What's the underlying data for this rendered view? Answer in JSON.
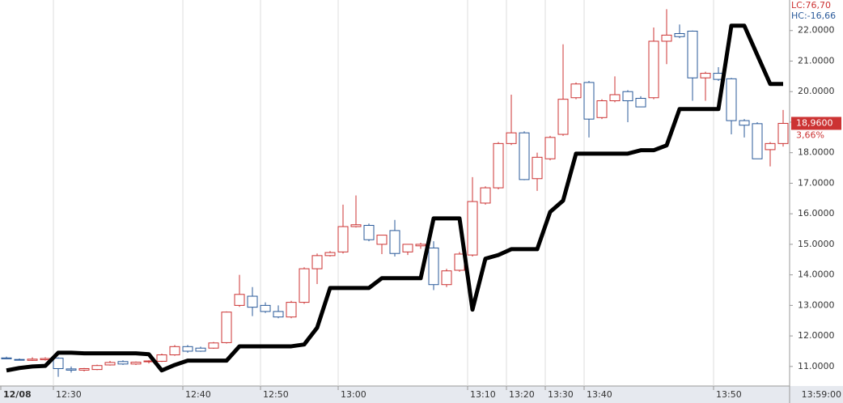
{
  "chart_data": {
    "type": "candlestick",
    "categories": [
      "12/08",
      null,
      null,
      null,
      "12:30",
      null,
      null,
      null,
      null,
      null,
      null,
      null,
      null,
      null,
      "12:40",
      null,
      null,
      null,
      null,
      null,
      "12:50",
      null,
      null,
      null,
      null,
      null,
      "13:00",
      null,
      null,
      null,
      null,
      null,
      null,
      null,
      null,
      null,
      "13:10",
      null,
      null,
      "13:20",
      null,
      null,
      "13:30",
      null,
      null,
      "13:40",
      null,
      null,
      null,
      null,
      null,
      null,
      null,
      null,
      null,
      "13:50",
      null,
      null,
      null,
      null,
      null
    ],
    "open": [
      11.28,
      11.23,
      11.2,
      11.22,
      11.27,
      10.92,
      10.88,
      10.9,
      11.05,
      11.16,
      11.08,
      11.16,
      11.17,
      11.38,
      11.65,
      11.6,
      11.6,
      11.78,
      13.0,
      13.3,
      13.0,
      12.8,
      12.62,
      13.1,
      14.2,
      14.63,
      14.75,
      15.58,
      15.62,
      15.0,
      15.45,
      14.75,
      14.95,
      14.88,
      13.68,
      14.15,
      14.65,
      16.35,
      16.85,
      18.3,
      18.65,
      17.15,
      17.8,
      18.6,
      19.8,
      20.3,
      19.15,
      19.7,
      20.0,
      19.78,
      19.8,
      21.65,
      21.9,
      21.98,
      20.45,
      20.6,
      20.42,
      19.05,
      18.95,
      18.1,
      18.3
    ],
    "high": [
      11.32,
      11.26,
      11.3,
      11.3,
      11.3,
      11.0,
      10.95,
      11.06,
      11.18,
      11.2,
      11.16,
      11.2,
      11.42,
      11.7,
      11.7,
      11.65,
      11.8,
      12.8,
      14.0,
      13.6,
      13.1,
      13.0,
      13.15,
      14.25,
      14.7,
      14.78,
      16.3,
      16.6,
      15.68,
      15.3,
      15.8,
      15.0,
      15.05,
      15.1,
      14.2,
      14.75,
      17.2,
      16.9,
      18.35,
      19.9,
      18.7,
      18.0,
      18.55,
      21.55,
      20.3,
      20.35,
      19.75,
      20.5,
      20.05,
      19.85,
      22.1,
      22.7,
      22.2,
      22.0,
      20.65,
      20.8,
      20.45,
      19.1,
      19.0,
      18.35,
      19.4
    ],
    "low": [
      11.24,
      11.2,
      11.18,
      11.19,
      10.66,
      10.8,
      10.84,
      10.88,
      11.03,
      11.05,
      11.05,
      11.1,
      11.15,
      11.35,
      11.45,
      11.48,
      11.58,
      11.75,
      12.95,
      12.65,
      12.75,
      12.58,
      12.58,
      13.05,
      13.7,
      14.6,
      14.7,
      15.55,
      15.1,
      14.68,
      14.6,
      14.65,
      14.85,
      13.5,
      13.6,
      14.1,
      14.6,
      16.3,
      16.8,
      18.25,
      17.1,
      16.75,
      17.75,
      18.55,
      19.75,
      18.5,
      19.1,
      19.65,
      19.0,
      19.5,
      19.75,
      20.9,
      21.75,
      19.7,
      19.7,
      20.35,
      18.6,
      18.5,
      17.8,
      17.55,
      18.2
    ],
    "close": [
      11.25,
      11.22,
      11.24,
      11.26,
      10.93,
      10.88,
      10.93,
      11.03,
      11.13,
      11.08,
      11.14,
      11.18,
      11.38,
      11.65,
      11.5,
      11.5,
      11.77,
      12.78,
      13.36,
      12.94,
      12.8,
      12.62,
      13.1,
      14.2,
      14.63,
      14.73,
      15.58,
      15.64,
      15.15,
      15.3,
      14.7,
      15.0,
      15.0,
      13.68,
      14.13,
      14.68,
      16.4,
      16.85,
      18.3,
      18.65,
      17.12,
      17.85,
      18.5,
      19.75,
      20.25,
      19.1,
      19.7,
      19.9,
      19.7,
      19.5,
      21.65,
      21.85,
      21.8,
      20.45,
      20.6,
      20.4,
      19.05,
      18.9,
      17.8,
      18.3,
      18.96
    ],
    "up_color": "#cc3333",
    "down_color": "#2a5a9a",
    "line": {
      "color": "#000000",
      "values": [
        10.87,
        10.95,
        11.0,
        11.02,
        11.45,
        11.45,
        11.43,
        11.43,
        11.43,
        11.43,
        11.43,
        11.4,
        10.87,
        11.05,
        11.19,
        11.19,
        11.19,
        11.19,
        11.66,
        11.66,
        11.66,
        11.66,
        11.66,
        11.72,
        12.27,
        13.57,
        13.57,
        13.57,
        13.57,
        13.89,
        13.89,
        13.89,
        13.89,
        15.85,
        15.85,
        15.85,
        12.86,
        14.53,
        14.65,
        14.84,
        14.84,
        14.84,
        16.06,
        16.43,
        17.97,
        17.97,
        17.97,
        17.97,
        17.97,
        18.08,
        18.08,
        18.24,
        19.43,
        19.43,
        19.43,
        19.43,
        22.16,
        22.16,
        21.2,
        20.25,
        20.25
      ]
    },
    "ylim": [
      10.36,
      23.0
    ],
    "yticks": [
      {
        "value": 11,
        "label": "11.0000"
      },
      {
        "value": 12,
        "label": "12.0000"
      },
      {
        "value": 13,
        "label": "13.0000"
      },
      {
        "value": 14,
        "label": "14.0000"
      },
      {
        "value": 15,
        "label": "15.0000"
      },
      {
        "value": 16,
        "label": "16.0000"
      },
      {
        "value": 17,
        "label": "17.0000"
      },
      {
        "value": 18,
        "label": "18.0000"
      },
      {
        "value": 19,
        "label": "19.0000"
      },
      {
        "value": 20,
        "label": "20.0000"
      },
      {
        "value": 21,
        "label": "21.0000"
      },
      {
        "value": 22,
        "label": "22.0000"
      }
    ],
    "x_end_label": "13:59:00",
    "lc_label": "LC:76,70",
    "hc_label": "HC:-16,66",
    "last_label": "18,9600",
    "change_label": "3,66%",
    "grid": true
  }
}
